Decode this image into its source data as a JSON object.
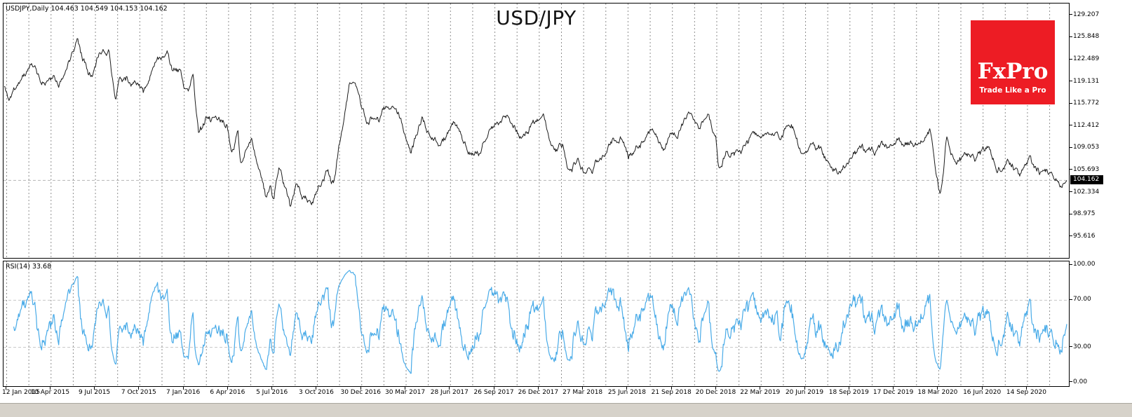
{
  "symbol_bar": {
    "text": "USDJPY,Daily 104.463 104.549 104.153 104.162"
  },
  "title": "USD/JPY",
  "logo": {
    "brand": "FxPro",
    "tagline": "Trade Like a Pro",
    "bg_color": "#ed1c24",
    "text_color": "#ffffff"
  },
  "price_axis": {
    "tick_labels": [
      "129.207",
      "125.848",
      "122.489",
      "119.131",
      "115.772",
      "112.412",
      "109.053",
      "105.693",
      "102.334",
      "98.975",
      "95.616"
    ],
    "current_price_label": "104.162"
  },
  "rsi_panel": {
    "label": "RSI(14) 33.68",
    "tick_labels": [
      "100.00",
      "70.00",
      "30.00",
      "0.00"
    ]
  },
  "date_axis": {
    "labels": [
      "12 Jan 2015",
      "10 Apr 2015",
      "9 Jul 2015",
      "7 Oct 2015",
      "7 Jan 2016",
      "6 Apr 2016",
      "5 Jul 2016",
      "3 Oct 2016",
      "30 Dec 2016",
      "30 Mar 2017",
      "28 Jun 2017",
      "26 Sep 2017",
      "26 Dec 2017",
      "27 Mar 2018",
      "25 Jun 2018",
      "21 Sep 2018",
      "20 Dec 2018",
      "22 Mar 2019",
      "20 Jun 2019",
      "18 Sep 2019",
      "17 Dec 2019",
      "18 Mar 2020",
      "16 Jun 2020",
      "14 Sep 2020"
    ]
  },
  "colors": {
    "price_line": "#1c1c1c",
    "rsi_line": "#49abe8",
    "grid": "#8f8f8f",
    "price_tag_bg": "#000000",
    "price_tag_text": "#ffffff",
    "bottom_strip": "#d6d2ca"
  },
  "chart_data": [
    {
      "type": "line",
      "name": "USDJPY Daily close",
      "title": "USD/JPY",
      "symbol": "USDJPY",
      "timeframe": "Daily",
      "ohlc": {
        "open": 104.463,
        "high": 104.549,
        "low": 104.153,
        "close": 104.162
      },
      "last_price": 104.162,
      "ylim": [
        92.4,
        131.0
      ],
      "yticks": [
        129.207,
        125.848,
        122.489,
        119.131,
        115.772,
        112.412,
        109.053,
        105.693,
        102.334,
        98.975,
        95.616
      ],
      "grid": "dashed-vertical",
      "x_start": "12 Jan 2015",
      "x_end": "Nov 2020",
      "anchors": {
        "comment_units": "months since 12 Jan 2015 -> approximate close price",
        "months": [
          0,
          0.3,
          1,
          2,
          2.5,
          3,
          3.8,
          4.4,
          4.9,
          5.2,
          5.9,
          6.4,
          7,
          7.45,
          7.7,
          8.3,
          8.9,
          9.3,
          10.1,
          10.9,
          11.2,
          11.8,
          12.05,
          12.3,
          12.6,
          13,
          13.5,
          14.2,
          14.9,
          15.2,
          15.6,
          15.8,
          16.5,
          17.1,
          17.45,
          17.8,
          18,
          18.35,
          19.1,
          19.5,
          20,
          20.5,
          20.8,
          21.5,
          22,
          23.1,
          23.6,
          24.2,
          25,
          25.9,
          27.2,
          27.9,
          28.5,
          29.1,
          30,
          31,
          31.8,
          32.5,
          33.6,
          34.5,
          35.3,
          36,
          36.8,
          37.3,
          37.7,
          38.3,
          38.8,
          39.8,
          40.6,
          41.3,
          41.7,
          42.6,
          43.1,
          44.1,
          45,
          45.7,
          46.4,
          47.0,
          47.55,
          47.75,
          48.2,
          49.1,
          50,
          51,
          51.9,
          52.6,
          53.3,
          54,
          54.6,
          55.8,
          56.8,
          58,
          58.6,
          59.3,
          60.5,
          61.0,
          61.6,
          61.85,
          62.2,
          62.55,
          63.0,
          63.5,
          64.2,
          65,
          65.8,
          66.3,
          67,
          67.9,
          68.5,
          69,
          69.6,
          70.2,
          70.6,
          71
        ],
        "prices": [
          118.4,
          117.0,
          118.8,
          121.3,
          119.2,
          119.6,
          119.3,
          121.5,
          125.5,
          122.9,
          120.8,
          124.2,
          125.0,
          117.0,
          120.8,
          120.0,
          120.0,
          118.4,
          123.3,
          123.0,
          120.8,
          120.3,
          118.6,
          116.9,
          121.0,
          111.3,
          113.8,
          113.0,
          112.3,
          107.9,
          111.4,
          106.4,
          110.2,
          105.6,
          102.3,
          102.5,
          100.8,
          106.2,
          100.2,
          103.3,
          102.0,
          100.6,
          101.6,
          104.9,
          103.2,
          118.2,
          116.9,
          112.8,
          113.3,
          115.2,
          108.6,
          114.2,
          110.9,
          109.0,
          113.8,
          109.2,
          107.9,
          112.5,
          114.0,
          111.2,
          113.3,
          112.7,
          108.6,
          110.3,
          105.8,
          107.0,
          104.9,
          107.5,
          110.0,
          111.3,
          108.4,
          110.6,
          112.8,
          110.1,
          112.2,
          114.3,
          112.0,
          113.4,
          110.4,
          106.2,
          108.7,
          109.0,
          110.5,
          111.5,
          110.6,
          111.8,
          107.4,
          108.0,
          108.5,
          105.2,
          108.0,
          108.5,
          109.2,
          108.6,
          109.9,
          108.9,
          110.5,
          112.0,
          107.0,
          102.5,
          111.3,
          107.3,
          107.8,
          107.1,
          109.3,
          106.9,
          107.2,
          104.8,
          106.8,
          105.4,
          104.9,
          104.5,
          103.4,
          104.16
        ]
      }
    },
    {
      "type": "line",
      "name": "RSI(14)",
      "period": 14,
      "last_value": 33.68,
      "ylim": [
        0,
        100
      ],
      "yticks": [
        100,
        70,
        30,
        0
      ],
      "levels": [
        70,
        30
      ],
      "color": "#49abe8",
      "grid": "dashed-vertical"
    }
  ],
  "render": {
    "seed": 11,
    "points": 1560,
    "noise": [
      {
        "decay": 0.9,
        "amp": 0.8
      },
      {
        "decay": 0.985,
        "amp": 0.22
      }
    ],
    "jitter": 0.2
  }
}
